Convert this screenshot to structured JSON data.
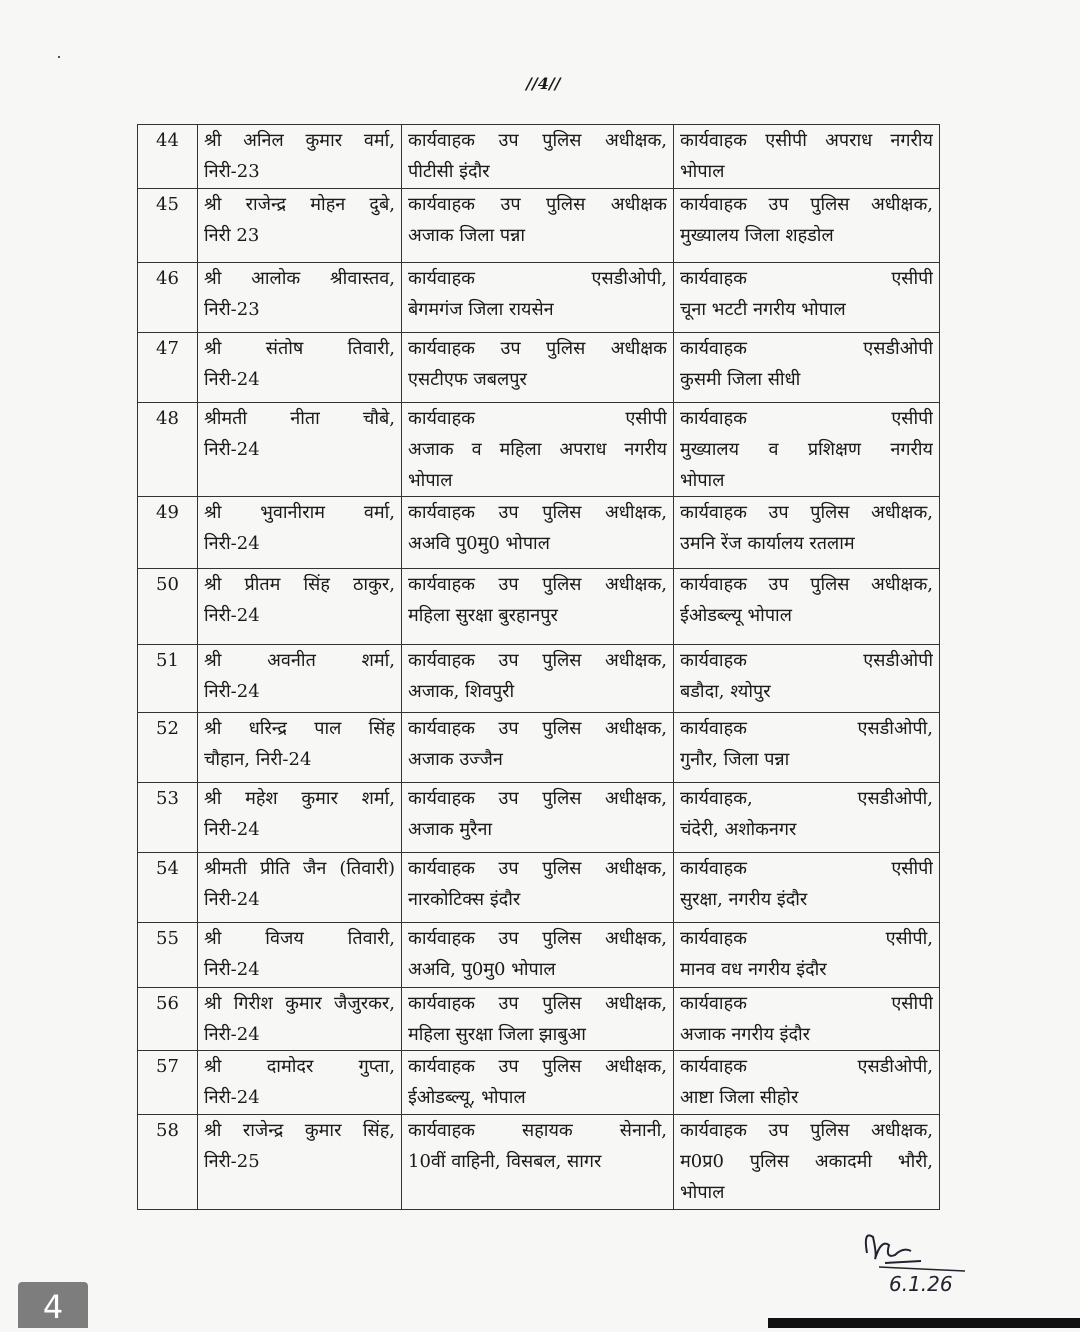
{
  "page_number_label": "//4//",
  "rows": [
    {
      "num": "44",
      "name": [
        "श्री अनिल कुमार वर्मा,",
        "निरी-23"
      ],
      "current": [
        "कार्यवाहक उप पुलिस अधीक्षक,",
        "पीटीसी इंदौर"
      ],
      "new": [
        "कार्यवाहक एसीपी अपराध नगरीय",
        "भोपाल"
      ]
    },
    {
      "num": "45",
      "name": [
        "श्री राजेन्द्र मोहन दुबे,",
        "निरी 23"
      ],
      "current": [
        "कार्यवाहक उप पुलिस अधीक्षक",
        "अजाक जिला पन्ना"
      ],
      "new": [
        "कार्यवाहक उप पुलिस अधीक्षक,",
        "मुख्यालय जिला शहडोल"
      ]
    },
    {
      "num": "46",
      "name": [
        "श्री आलोक श्रीवास्तव,",
        "निरी-23"
      ],
      "current": [
        "कार्यवाहक एसडीओपी,",
        "बेगमगंज जिला रायसेन"
      ],
      "new": [
        "कार्यवाहक एसीपी",
        "चूना भटटी नगरीय भोपाल"
      ]
    },
    {
      "num": "47",
      "name": [
        "श्री संतोष तिवारी,",
        "निरी-24"
      ],
      "current": [
        "कार्यवाहक उप पुलिस अधीक्षक",
        "एसटीएफ जबलपुर"
      ],
      "new": [
        "कार्यवाहक एसडीओपी",
        "कुसमी जिला सीधी"
      ]
    },
    {
      "num": "48",
      "name": [
        "श्रीमती नीता चौबे,",
        "निरी-24"
      ],
      "current": [
        "कार्यवाहक एसीपी",
        "अजाक व महिला अपराध नगरीय",
        "भोपाल"
      ],
      "new": [
        "कार्यवाहक एसीपी",
        "मुख्यालय व प्रशिक्षण नगरीय",
        "भोपाल"
      ]
    },
    {
      "num": "49",
      "name": [
        "श्री भुवानीराम वर्मा,",
        "निरी-24"
      ],
      "current": [
        "कार्यवाहक उप पुलिस अधीक्षक,",
        "अअवि पु0मु0 भोपाल"
      ],
      "new": [
        "कार्यवाहक उप पुलिस अधीक्षक,",
        "उमनि रेंज कार्यालय रतलाम"
      ]
    },
    {
      "num": "50",
      "name": [
        "श्री प्रीतम सिंह ठाकुर,",
        "निरी-24"
      ],
      "current": [
        "कार्यवाहक उप पुलिस अधीक्षक,",
        "महिला सुरक्षा बुरहानपुर"
      ],
      "new": [
        "कार्यवाहक उप पुलिस अधीक्षक,",
        "ईओडब्ल्यू भोपाल"
      ]
    },
    {
      "num": "51",
      "name": [
        "श्री अवनीत शर्मा,",
        "निरी-24"
      ],
      "current": [
        "कार्यवाहक उप पुलिस अधीक्षक,",
        "अजाक, शिवपुरी"
      ],
      "new": [
        "कार्यवाहक एसडीओपी",
        "बडौदा, श्योपुर"
      ]
    },
    {
      "num": "52",
      "name": [
        "श्री धरिन्द्र पाल सिंह",
        "चौहान, निरी-24"
      ],
      "current": [
        "कार्यवाहक उप पुलिस अधीक्षक,",
        "अजाक उज्जैन"
      ],
      "new": [
        "कार्यवाहक एसडीओपी,",
        "गुनौर, जिला पन्ना"
      ]
    },
    {
      "num": "53",
      "name": [
        "श्री महेश कुमार शर्मा,",
        "निरी-24"
      ],
      "current": [
        "कार्यवाहक उप पुलिस अधीक्षक,",
        "अजाक मुरैना"
      ],
      "new": [
        "कार्यवाहक, एसडीओपी,",
        "चंदेरी, अशोकनगर"
      ]
    },
    {
      "num": "54",
      "name": [
        "श्रीमती प्रीति जैन (तिवारी)",
        "निरी-24"
      ],
      "current": [
        "कार्यवाहक उप पुलिस अधीक्षक,",
        "नारकोटिक्स इंदौर"
      ],
      "new": [
        "कार्यवाहक एसीपी",
        "सुरक्षा, नगरीय इंदौर"
      ]
    },
    {
      "num": "55",
      "name": [
        "श्री विजय तिवारी,",
        "निरी-24"
      ],
      "current": [
        "कार्यवाहक उप पुलिस अधीक्षक,",
        "अअवि, पु0मु0 भोपाल"
      ],
      "new": [
        "कार्यवाहक एसीपी,",
        "मानव वध नगरीय इंदौर"
      ]
    },
    {
      "num": "56",
      "name": [
        "श्री गिरीश कुमार जैजुरकर,",
        "निरी-24"
      ],
      "current": [
        "कार्यवाहक उप पुलिस अधीक्षक,",
        "महिला सुरक्षा जिला झाबुआ"
      ],
      "new": [
        "कार्यवाहक एसीपी",
        "अजाक नगरीय इंदौर"
      ]
    },
    {
      "num": "57",
      "name": [
        "श्री दामोदर गुप्ता,",
        "निरी-24"
      ],
      "current": [
        "कार्यवाहक उप पुलिस अधीक्षक,",
        "ईओडब्ल्यू, भोपाल"
      ],
      "new": [
        "कार्यवाहक एसडीओपी,",
        "आष्टा जिला सीहोर"
      ]
    },
    {
      "num": "58",
      "name": [
        "श्री राजेन्द्र कुमार सिंह,",
        "निरी-25"
      ],
      "current": [
        "कार्यवाहक सहायक सेनानी,",
        "10वीं वाहिनी, विसबल, सागर"
      ],
      "new": [
        "कार्यवाहक उप पुलिस अधीक्षक,",
        "म0प्र0 पुलिस अकादमी भौरी,",
        "भोपाल"
      ]
    }
  ],
  "signature_date": "6.1.26",
  "page_tab_label": "4"
}
